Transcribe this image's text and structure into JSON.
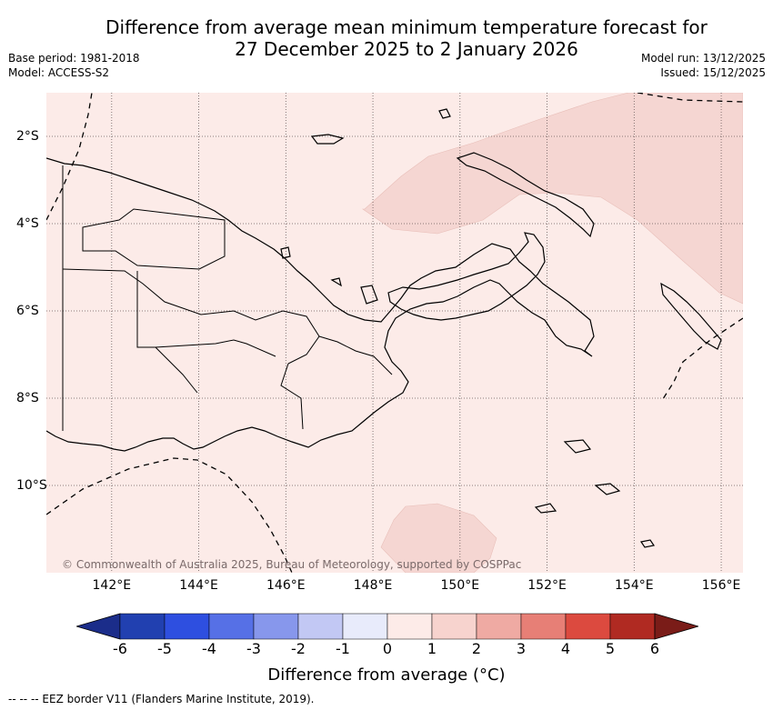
{
  "title_line1": "Difference from average mean minimum temperature forecast for",
  "title_line2": "27 December 2025 to 2 January 2026",
  "meta": {
    "base_period": "Base period: 1981-2018",
    "model": "Model: ACCESS-S2",
    "model_run": "Model run: 13/12/2025",
    "issued": "Issued: 15/12/2025"
  },
  "map": {
    "lon_labels": [
      "142°E",
      "144°E",
      "146°E",
      "148°E",
      "150°E",
      "152°E",
      "154°E",
      "156°E"
    ],
    "lat_labels": [
      "2°S",
      "4°S",
      "6°S",
      "8°S",
      "10°S"
    ],
    "lon_values": [
      142,
      144,
      146,
      148,
      150,
      152,
      154,
      156
    ],
    "lat_values": [
      -2,
      -4,
      -6,
      -8,
      -10
    ],
    "extent": {
      "lon_min": 140.5,
      "lon_max": 156.5,
      "lat_min": -12.0,
      "lat_max": -1.0
    },
    "background_category": "0 to 1",
    "background_color": "#fcebe8",
    "anomaly_color": "#f5d6d2",
    "copyright": "© Commonwealth of Australia 2025, Bureau of Meteorology, supported by COSPPac"
  },
  "colorbar": {
    "ticks": [
      "-6",
      "-5",
      "-4",
      "-3",
      "-2",
      "-1",
      "0",
      "1",
      "2",
      "3",
      "4",
      "5",
      "6"
    ],
    "colors": [
      "#2140b0",
      "#2e4fe0",
      "#5670e6",
      "#8797ec",
      "#c2c8f4",
      "#e8ebfb",
      "#fdebe8",
      "#f7d3ce",
      "#efaaa3",
      "#e77f76",
      "#dc4a3f",
      "#b02a22"
    ],
    "low_extend_color": "#1b2d8a",
    "high_extend_color": "#7a1c18",
    "label": "Difference from average (°C)"
  },
  "footer": "--  --  -- EEZ border V11 (Flanders Marine Institute, 2019)."
}
